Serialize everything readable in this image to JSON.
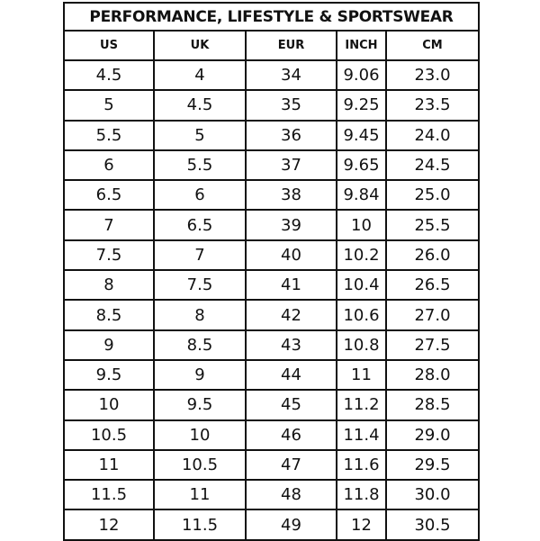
{
  "title": "PERFORMANCE, LIFESTYLE & SPORTSWEAR",
  "columns": [
    "US",
    "UK",
    "EUR",
    "INCH",
    "CM"
  ],
  "rows": [
    [
      "4.5",
      "4",
      "34",
      "9.06",
      "23.0"
    ],
    [
      "5",
      "4.5",
      "35",
      "9.25",
      "23.5"
    ],
    [
      "5.5",
      "5",
      "36",
      "9.45",
      "24.0"
    ],
    [
      "6",
      "5.5",
      "37",
      "9.65",
      "24.5"
    ],
    [
      "6.5",
      "6",
      "38",
      "9.84",
      "25.0"
    ],
    [
      "7",
      "6.5",
      "39",
      "10",
      "25.5"
    ],
    [
      "7.5",
      "7",
      "40",
      "10.2",
      "26.0"
    ],
    [
      "8",
      "7.5",
      "41",
      "10.4",
      "26.5"
    ],
    [
      "8.5",
      "8",
      "42",
      "10.6",
      "27.0"
    ],
    [
      "9",
      "8.5",
      "43",
      "10.8",
      "27.5"
    ],
    [
      "9.5",
      "9",
      "44",
      "11",
      "28.0"
    ],
    [
      "10",
      "9.5",
      "45",
      "11.2",
      "28.5"
    ],
    [
      "10.5",
      "10",
      "46",
      "11.4",
      "29.0"
    ],
    [
      "11",
      "10.5",
      "47",
      "11.6",
      "29.5"
    ],
    [
      "11.5",
      "11",
      "48",
      "11.8",
      "30.0"
    ],
    [
      "12",
      "11.5",
      "49",
      "12",
      "30.5"
    ]
  ]
}
